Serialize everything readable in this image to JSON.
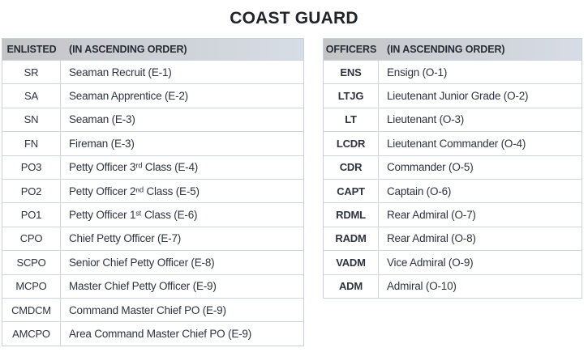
{
  "title": "COAST GUARD",
  "colors": {
    "header_gradient_left": "#c3c4c6",
    "header_gradient_right": "#d7dde6",
    "grid_border": "#cfd6dd",
    "body_text": "#2d3340",
    "title_text": "#20242a",
    "background": "#ffffff"
  },
  "tables": {
    "enlisted": {
      "header": {
        "col1": "ENLISTED",
        "col2": "(IN ASCENDING ORDER)"
      },
      "rows": [
        {
          "abbr": "SR",
          "desc": "Seaman Recruit (E-1)"
        },
        {
          "abbr": "SA",
          "desc": "Seaman Apprentice (E-2)"
        },
        {
          "abbr": "SN",
          "desc": "Seaman (E-3)"
        },
        {
          "abbr": "FN",
          "desc": "Fireman (E-3)"
        },
        {
          "abbr": "PO3",
          "desc": "Petty Officer 3ʳᵈ Class (E-4)"
        },
        {
          "abbr": "PO2",
          "desc": "Petty Officer 2ⁿᵈ Class (E-5)"
        },
        {
          "abbr": "PO1",
          "desc": "Petty Officer 1ˢᵗ Class (E-6)"
        },
        {
          "abbr": "CPO",
          "desc": "Chief Petty Officer (E-7)"
        },
        {
          "abbr": "SCPO",
          "desc": "Senior Chief Petty Officer (E-8)"
        },
        {
          "abbr": "MCPO",
          "desc": "Master Chief Petty Officer (E-9)"
        },
        {
          "abbr": "CMDCM",
          "desc": "Command Master Chief PO (E-9)"
        },
        {
          "abbr": "AMCPO",
          "desc": "Area Command Master Chief PO (E-9)"
        }
      ]
    },
    "officers": {
      "header": {
        "col1": "OFFICERS",
        "col2": "(IN ASCENDING ORDER)"
      },
      "rows": [
        {
          "abbr": "ENS",
          "desc": "Ensign (O-1)"
        },
        {
          "abbr": "LTJG",
          "desc": "Lieutenant Junior Grade (O-2)"
        },
        {
          "abbr": "LT",
          "desc": "Lieutenant (O-3)"
        },
        {
          "abbr": "LCDR",
          "desc": "Lieutenant Commander (O-4)"
        },
        {
          "abbr": "CDR",
          "desc": "Commander (O-5)"
        },
        {
          "abbr": "CAPT",
          "desc": "Captain (O-6)"
        },
        {
          "abbr": "RDML",
          "desc": "Rear Admiral (O-7)"
        },
        {
          "abbr": "RADM",
          "desc": "Rear Admiral (O-8)"
        },
        {
          "abbr": "VADM",
          "desc": "Vice Admiral (O-9)"
        },
        {
          "abbr": "ADM",
          "desc": "Admiral (O-10)"
        }
      ]
    }
  }
}
